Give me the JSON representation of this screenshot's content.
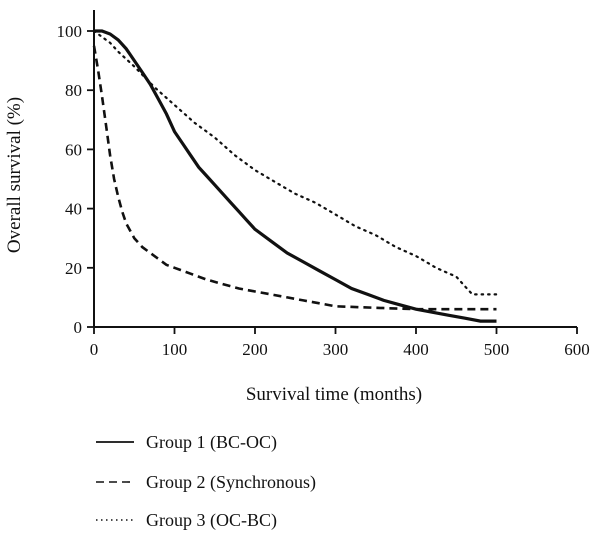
{
  "chart_data": {
    "type": "line",
    "xlabel": "Survival time (months)",
    "ylabel": "Overall survival (%)",
    "xlim": [
      0,
      600
    ],
    "ylim": [
      0,
      110
    ],
    "xticks": [
      0,
      100,
      200,
      300,
      400,
      500,
      600
    ],
    "yticks": [
      0,
      20,
      40,
      60,
      80,
      100
    ],
    "grid": false,
    "legend_position": "bottom",
    "series": [
      {
        "name": "Group 1 (BC-OC)",
        "line_style": "solid",
        "x": [
          0,
          10,
          20,
          30,
          40,
          50,
          60,
          70,
          80,
          90,
          100,
          110,
          120,
          130,
          140,
          150,
          160,
          170,
          180,
          190,
          200,
          220,
          240,
          260,
          280,
          300,
          320,
          340,
          360,
          380,
          400,
          420,
          440,
          460,
          480,
          500
        ],
        "y": [
          100,
          100,
          99,
          97,
          94,
          90,
          86,
          82,
          77,
          72,
          66,
          62,
          58,
          54,
          51,
          48,
          45,
          42,
          39,
          36,
          33,
          29,
          25,
          22,
          19,
          16,
          13,
          11,
          9,
          7.5,
          6,
          5,
          4,
          3,
          2,
          2
        ]
      },
      {
        "name": "Group 2 (Synchronous)",
        "line_style": "dashed",
        "x": [
          0,
          5,
          10,
          15,
          20,
          25,
          30,
          35,
          40,
          50,
          60,
          70,
          80,
          90,
          100,
          120,
          140,
          160,
          180,
          200,
          220,
          240,
          260,
          280,
          300,
          350,
          400,
          450,
          500
        ],
        "y": [
          95,
          87,
          78,
          68,
          58,
          50,
          44,
          39,
          35,
          30,
          27,
          25,
          23,
          21,
          20,
          18,
          16,
          14.5,
          13,
          12,
          11,
          10,
          9,
          8,
          7,
          6.5,
          6,
          6,
          6
        ]
      },
      {
        "name": "Group 3 (OC-BC)",
        "line_style": "dotted",
        "x": [
          0,
          10,
          20,
          30,
          50,
          75,
          100,
          125,
          150,
          175,
          200,
          225,
          250,
          275,
          300,
          325,
          350,
          375,
          400,
          425,
          450,
          460,
          470,
          480,
          500
        ],
        "y": [
          100,
          98,
          96,
          93,
          88,
          81,
          75,
          69,
          64,
          58,
          53,
          49,
          45,
          42,
          38,
          34,
          31,
          27,
          24,
          20,
          17,
          14,
          11,
          11,
          11
        ]
      }
    ]
  }
}
